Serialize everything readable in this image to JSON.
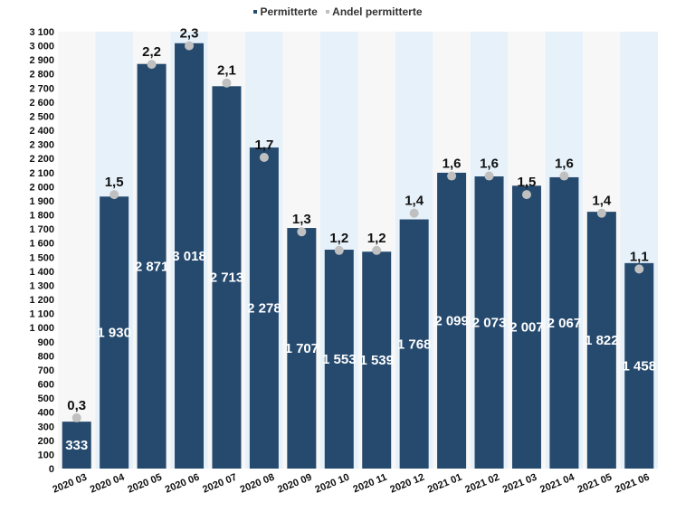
{
  "legend": {
    "items": [
      {
        "label": "Permitterte",
        "color": "#264a6e"
      },
      {
        "label": "Andel permitterte",
        "color": "#c0c0c0"
      }
    ]
  },
  "chart_data": {
    "type": "bar",
    "categories": [
      "2020 03",
      "2020 04",
      "2020 05",
      "2020 06",
      "2020 07",
      "2020 08",
      "2020 09",
      "2020 10",
      "2020 11",
      "2020 12",
      "2021 01",
      "2021 02",
      "2021 03",
      "2021 04",
      "2021 05",
      "2021 06"
    ],
    "series": [
      {
        "name": "Permitterte",
        "type": "bar",
        "color": "#264a6e",
        "values": [
          333,
          1930,
          2871,
          3018,
          2713,
          2278,
          1707,
          1553,
          1539,
          1768,
          2099,
          2073,
          2007,
          2067,
          1822,
          1458
        ],
        "labels": [
          "333",
          "1 930",
          "2 871",
          "3 018",
          "2 713",
          "2 278",
          "1 707",
          "1 553",
          "1 539",
          "1 768",
          "2 099",
          "2 073",
          "2 007",
          "2 067",
          "1 822",
          "1 458"
        ]
      },
      {
        "name": "Andel permitterte",
        "type": "scatter",
        "color": "#c0c0c0",
        "values": [
          0.3,
          1.5,
          2.2,
          2.3,
          2.1,
          1.7,
          1.3,
          1.2,
          1.2,
          1.4,
          1.6,
          1.6,
          1.5,
          1.6,
          1.4,
          1.1
        ],
        "labels": [
          "0,3",
          "1,5",
          "2,2",
          "2,3",
          "2,1",
          "1,7",
          "1,3",
          "1,2",
          "1,2",
          "1,4",
          "1,6",
          "1,6",
          "1,5",
          "1,6",
          "1,4",
          "1,1"
        ]
      }
    ],
    "ylim": [
      0,
      3100
    ],
    "yticks": [
      0,
      100,
      200,
      300,
      400,
      500,
      600,
      700,
      800,
      900,
      1000,
      1100,
      1200,
      1300,
      1400,
      1500,
      1600,
      1700,
      1800,
      1900,
      2000,
      2100,
      2200,
      2300,
      2400,
      2500,
      2600,
      2700,
      2800,
      2900,
      3000,
      3100
    ],
    "ytick_labels": [
      "0",
      "100",
      "200",
      "300",
      "400",
      "500",
      "600",
      "700",
      "800",
      "900",
      "1 000",
      "1 100",
      "1 200",
      "1 300",
      "1 400",
      "1 500",
      "1 600",
      "1 700",
      "1 800",
      "1 900",
      "2 000",
      "2 100",
      "2 200",
      "2 300",
      "2 400",
      "2 500",
      "2 600",
      "2 700",
      "2 800",
      "2 900",
      "3 000",
      "3 100"
    ],
    "background_bands": {
      "even": "#f7f7f7",
      "odd": "#e6f1fa"
    },
    "legend_position": "top-center",
    "grid": false
  }
}
